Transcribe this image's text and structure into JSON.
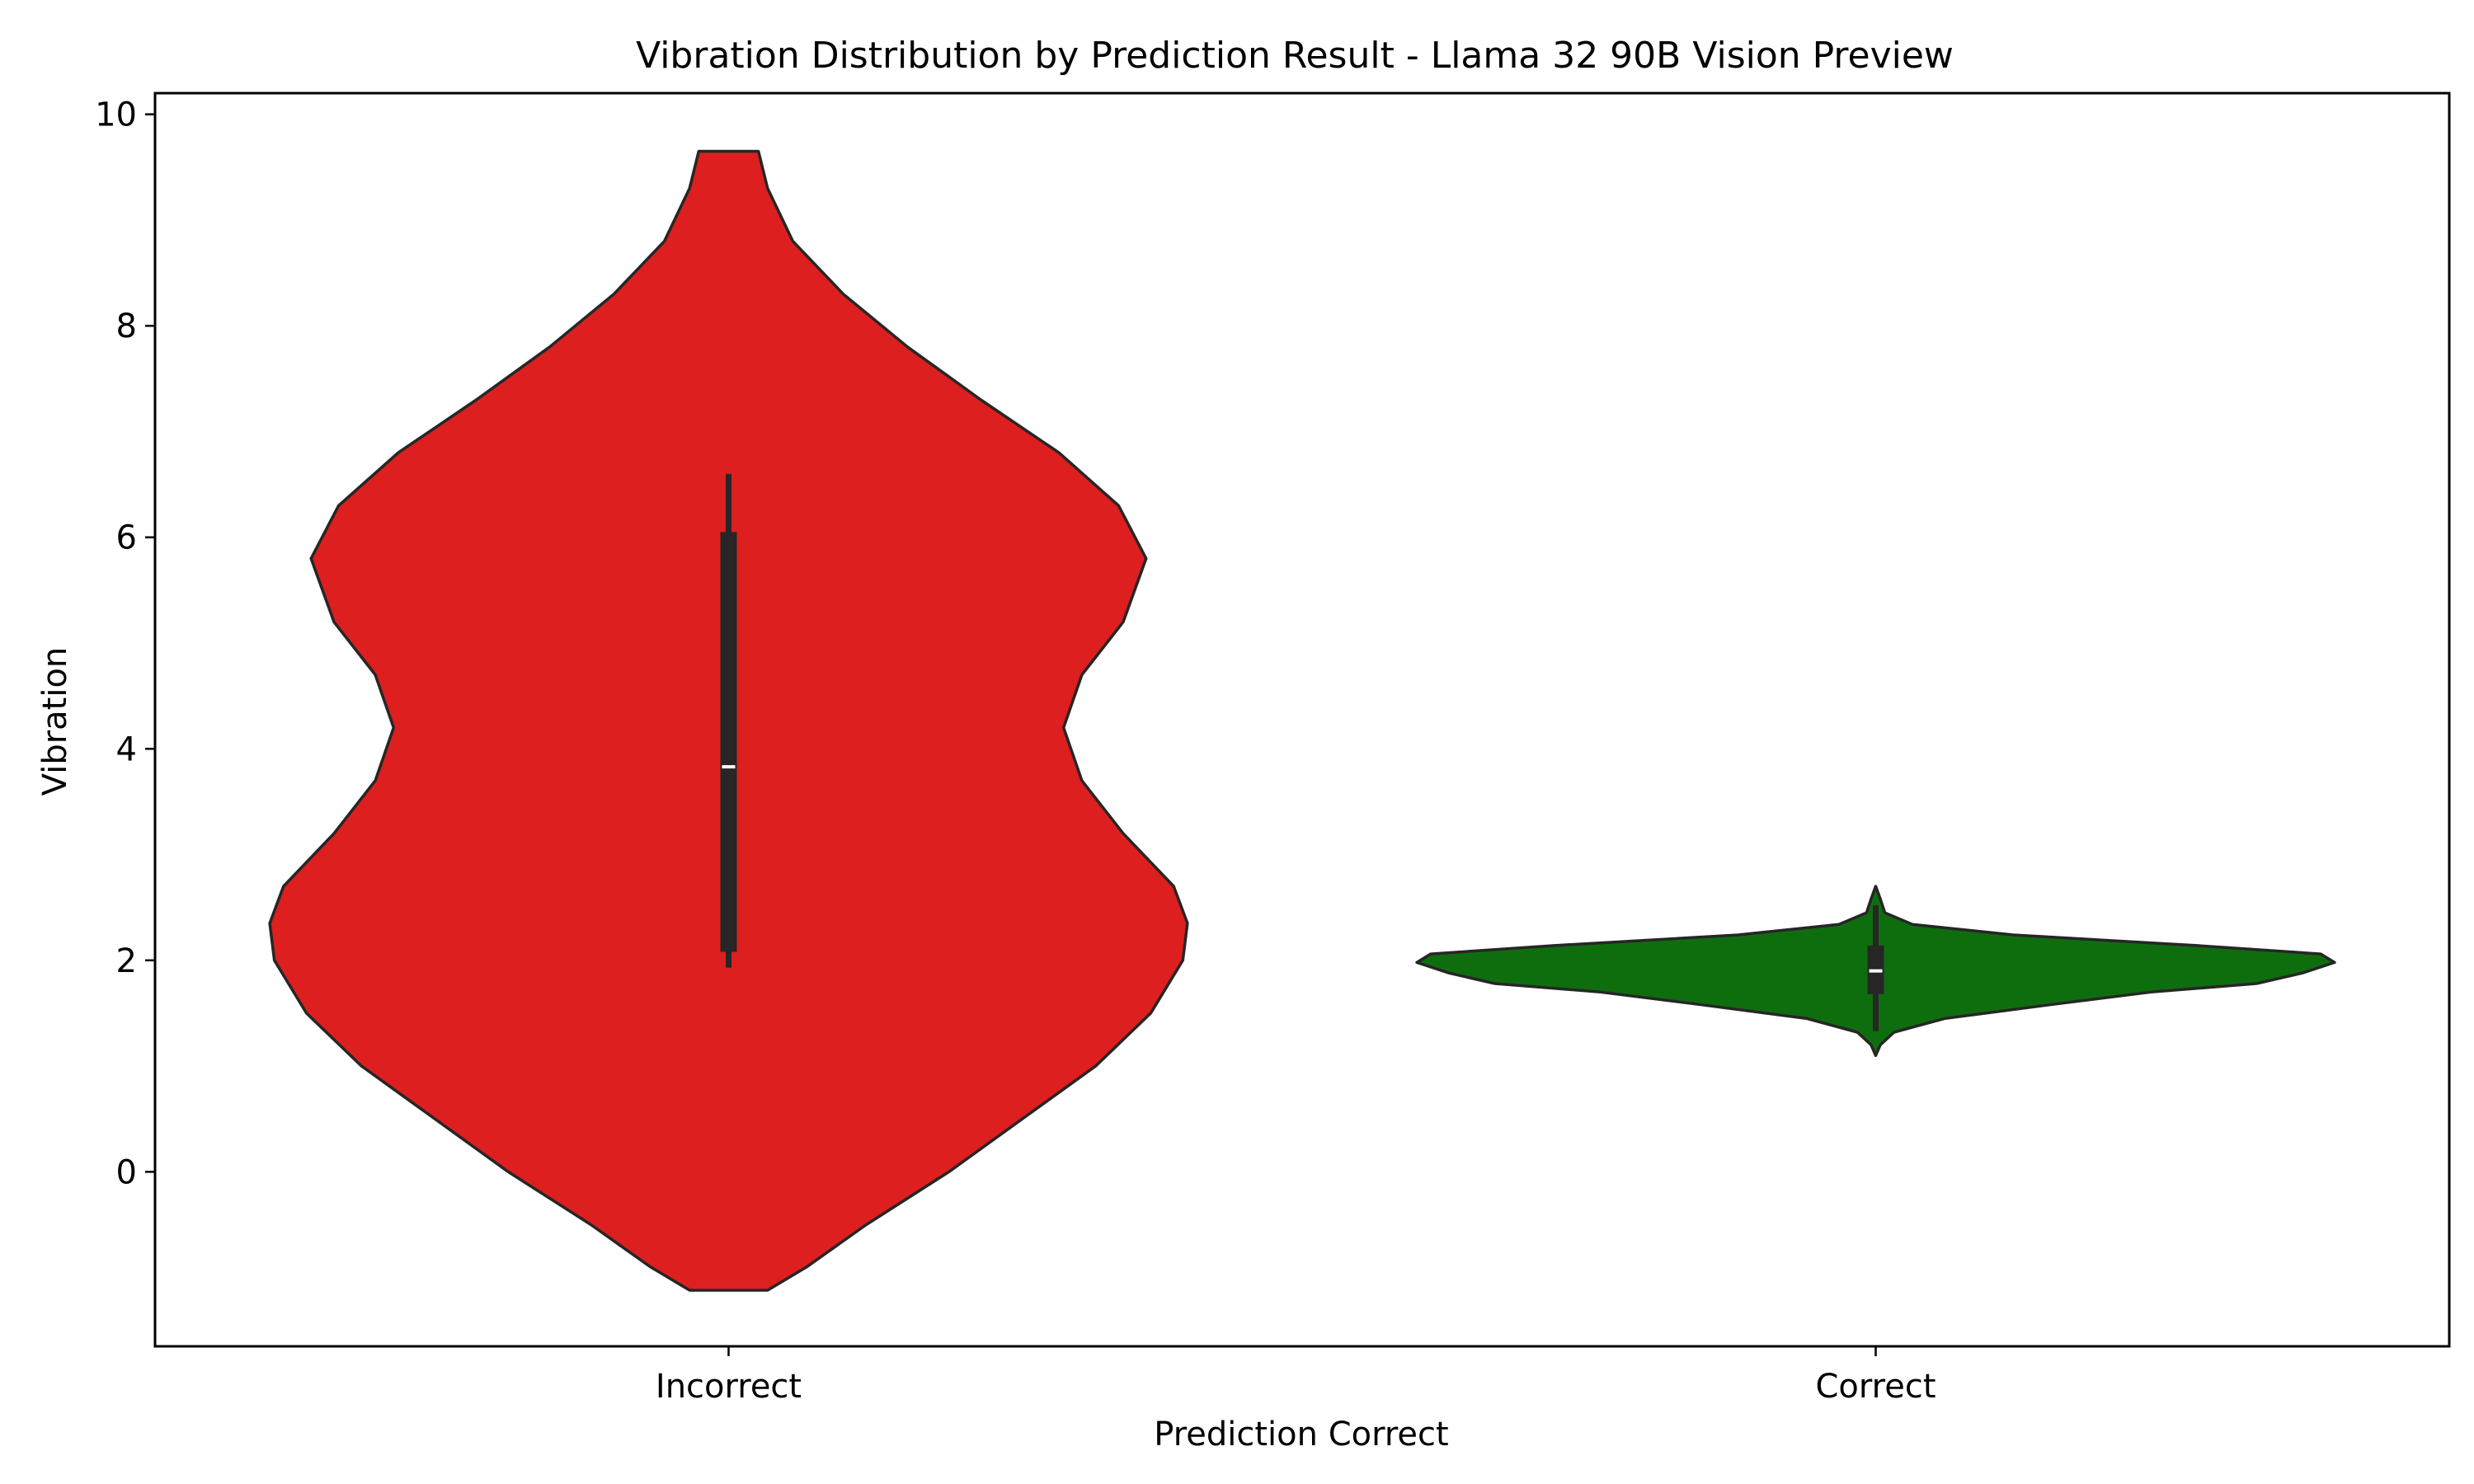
{
  "chart_data": {
    "type": "violin",
    "title": "Vibration Distribution by Prediction Result - Llama 32 90B Vision Preview",
    "xlabel": "Prediction Correct",
    "ylabel": "Vibration",
    "ylim": [
      -1.65,
      10.2
    ],
    "yticks": [
      0,
      2,
      4,
      6,
      8,
      10
    ],
    "ytick_labels": [
      "0",
      "2",
      "4",
      "6",
      "8",
      "10"
    ],
    "grid": false,
    "categories": [
      "Incorrect",
      "Correct"
    ],
    "series": [
      {
        "category": "Incorrect",
        "color": "#dd1f1f",
        "y_min": -1.12,
        "y_max": 9.65,
        "median": 3.83,
        "q1": 2.08,
        "q3": 6.05,
        "whisker_low": 1.93,
        "whisker_high": 6.6,
        "density_profile": [
          [
            -1.12,
            0.085
          ],
          [
            -0.9,
            0.17
          ],
          [
            -0.5,
            0.3
          ],
          [
            0,
            0.48
          ],
          [
            0.5,
            0.64
          ],
          [
            1,
            0.8
          ],
          [
            1.5,
            0.92
          ],
          [
            2,
            0.99
          ],
          [
            2.35,
            1.0
          ],
          [
            2.7,
            0.97
          ],
          [
            3.2,
            0.86
          ],
          [
            3.7,
            0.77
          ],
          [
            4.2,
            0.73
          ],
          [
            4.7,
            0.77
          ],
          [
            5.2,
            0.86
          ],
          [
            5.8,
            0.91
          ],
          [
            6.3,
            0.85
          ],
          [
            6.8,
            0.72
          ],
          [
            7.3,
            0.55
          ],
          [
            7.8,
            0.39
          ],
          [
            8.3,
            0.25
          ],
          [
            8.8,
            0.14
          ],
          [
            9.3,
            0.085
          ],
          [
            9.65,
            0.065
          ]
        ]
      },
      {
        "category": "Correct",
        "color": "#0e6e0e",
        "y_min": 1.1,
        "y_max": 2.7,
        "median": 1.9,
        "q1": 1.68,
        "q3": 2.14,
        "whisker_low": 1.33,
        "whisker_high": 2.52,
        "density_profile": [
          [
            1.1,
            0.0
          ],
          [
            1.2,
            0.01
          ],
          [
            1.32,
            0.04
          ],
          [
            1.45,
            0.15
          ],
          [
            1.58,
            0.38
          ],
          [
            1.7,
            0.6
          ],
          [
            1.78,
            0.83
          ],
          [
            1.88,
            0.93
          ],
          [
            1.98,
            1.0
          ],
          [
            2.06,
            0.97
          ],
          [
            2.14,
            0.7
          ],
          [
            2.24,
            0.3
          ],
          [
            2.34,
            0.08
          ],
          [
            2.45,
            0.02
          ],
          [
            2.58,
            0.01
          ],
          [
            2.7,
            0.0
          ]
        ]
      }
    ]
  }
}
